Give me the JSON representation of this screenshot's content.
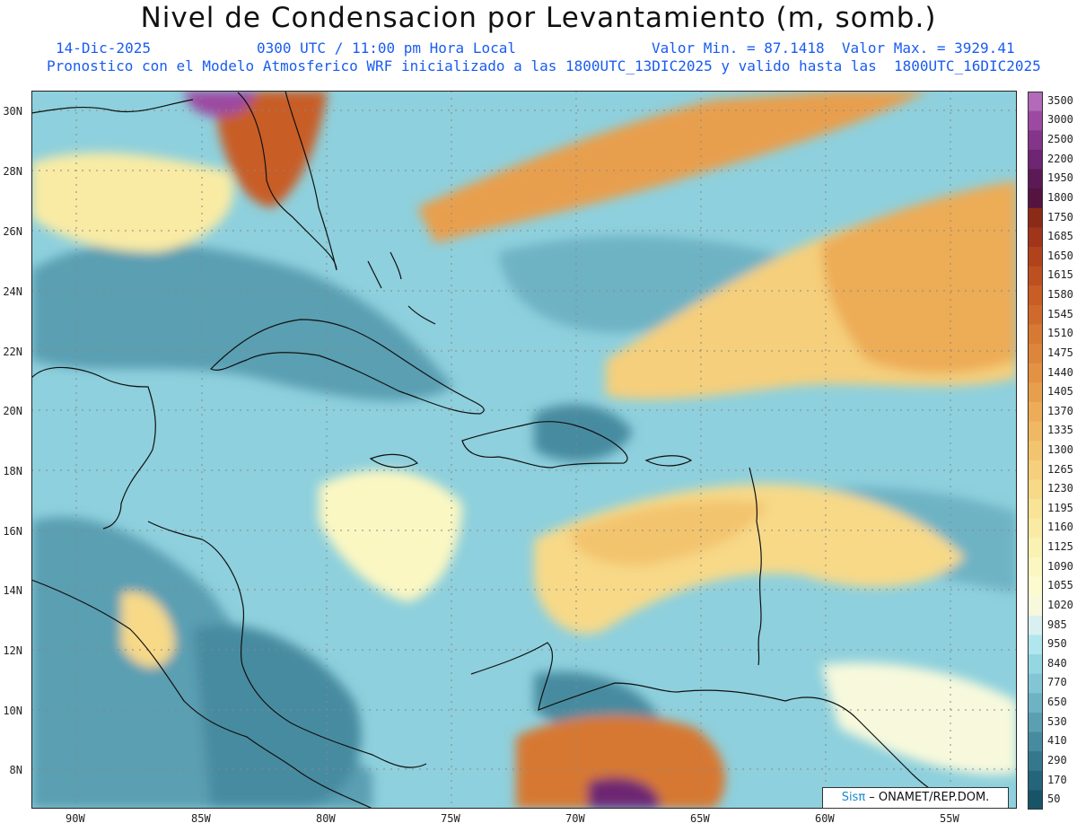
{
  "header": {
    "title": "Nivel de Condensacion por Levantamiento (m, somb.)",
    "date": "14-Dic-2025",
    "time": "0300 UTC / 11:00 pm Hora Local",
    "minmax": "Valor Min. = 87.1418  Valor Max. = 3929.41",
    "model": "Pronostico con el Modelo Atmosferico WRF inicializado a las 1800UTC_13DIC2025 y valido hasta las  1800UTC_16DIC2025"
  },
  "axes": {
    "lat": [
      "30N",
      "28N",
      "26N",
      "24N",
      "22N",
      "20N",
      "18N",
      "16N",
      "14N",
      "12N",
      "10N",
      "8N"
    ],
    "lon": [
      "90W",
      "85W",
      "80W",
      "75W",
      "70W",
      "65W",
      "60W",
      "55W"
    ]
  },
  "legend": {
    "levels": [
      "3500",
      "3000",
      "2500",
      "2200",
      "1950",
      "1800",
      "1750",
      "1685",
      "1650",
      "1615",
      "1580",
      "1545",
      "1510",
      "1475",
      "1440",
      "1405",
      "1370",
      "1335",
      "1300",
      "1265",
      "1230",
      "1195",
      "1160",
      "1125",
      "1090",
      "1055",
      "1020",
      "985",
      "950",
      "840",
      "770",
      "650",
      "530",
      "410",
      "290",
      "170",
      "50"
    ],
    "colors": [
      "#b36ab8",
      "#9c4aa1",
      "#84358a",
      "#6e2572",
      "#5b1a55",
      "#541340",
      "#8c2a18",
      "#a13519",
      "#b2421c",
      "#be4f20",
      "#c85d25",
      "#d06a2c",
      "#d77833",
      "#dd853b",
      "#e39243",
      "#e89f4d",
      "#edac57",
      "#f0b862",
      "#f3c46e",
      "#f5cf7b",
      "#f7d988",
      "#f8e396",
      "#f9eba4",
      "#faf2b3",
      "#fbf7c2",
      "#fcfbd0",
      "#f8f9dc",
      "#d8f0f0",
      "#b0e6ee",
      "#95d6e3",
      "#82c6d5",
      "#6eb3c4",
      "#5a9fb2",
      "#478ba0",
      "#35788e",
      "#24657c",
      "#175468"
    ]
  },
  "credit": {
    "brand": "Sisπ",
    "text": " –  ONAMET/REP.DOM."
  }
}
